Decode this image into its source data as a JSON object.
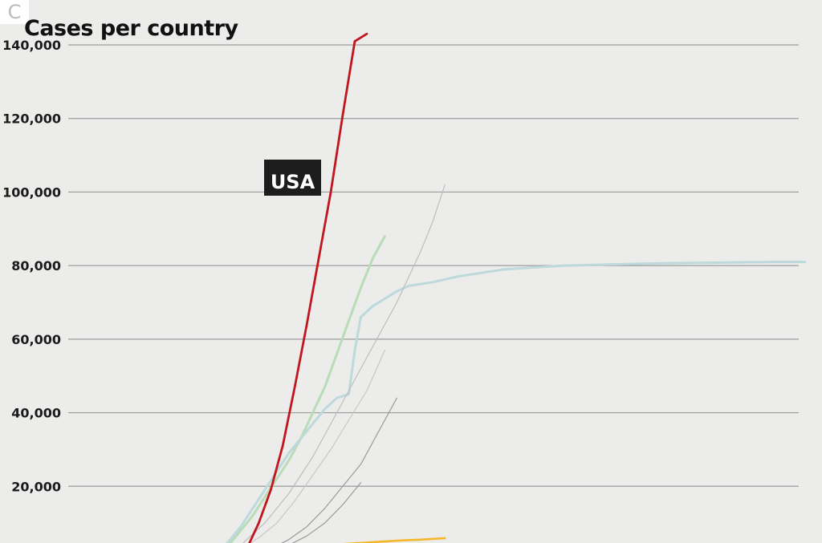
{
  "logo_text": "C",
  "chart_data": {
    "type": "line",
    "title": "Cases per country",
    "xlabel": "",
    "ylabel": "",
    "ylim": [
      0,
      140000
    ],
    "x_domain": [
      0,
      100
    ],
    "yticks": [
      {
        "value": 20000,
        "label": "20,000"
      },
      {
        "value": 40000,
        "label": "40,000"
      },
      {
        "value": 60000,
        "label": "60,000"
      },
      {
        "value": 80000,
        "label": "80,000"
      },
      {
        "value": 100000,
        "label": "100,000"
      },
      {
        "value": 120000,
        "label": "120,000"
      },
      {
        "value": 140000,
        "label": "140,000"
      }
    ],
    "grid": true,
    "series": [
      {
        "name": "USA",
        "color": "#c0161d",
        "x": [
          3,
          5,
          7,
          9,
          11,
          13,
          15,
          17,
          19,
          21,
          23,
          25,
          27
        ],
        "y": [
          0,
          1500,
          3000,
          10000,
          19000,
          31000,
          47000,
          64000,
          82000,
          100000,
          121000,
          141000,
          143000
        ]
      },
      {
        "color": "#b9dcb6",
        "x": [
          0,
          2,
          4,
          6,
          8,
          10,
          12,
          14,
          16,
          18,
          20,
          22,
          24,
          26,
          28,
          30
        ],
        "y": [
          0,
          1500,
          4000,
          8000,
          12000,
          17000,
          22000,
          27000,
          33000,
          40000,
          47000,
          56000,
          65000,
          74000,
          82000,
          88000
        ]
      },
      {
        "color": "#bcd9dc",
        "x": [
          0,
          2,
          4,
          6,
          8,
          10,
          12,
          14,
          16,
          18,
          20,
          22,
          24,
          25,
          26,
          28,
          30,
          32,
          34,
          38,
          42,
          46,
          50,
          55,
          60,
          65,
          70,
          75,
          80,
          85,
          90,
          95,
          100
        ],
        "y": [
          0,
          2000,
          5000,
          9000,
          14000,
          19000,
          24000,
          29000,
          33000,
          37000,
          41000,
          44000,
          45000,
          57000,
          66000,
          69000,
          71000,
          73000,
          74500,
          75500,
          77000,
          78000,
          79000,
          79500,
          80000,
          80200,
          80400,
          80600,
          80700,
          80800,
          80900,
          81000,
          81000
        ]
      },
      {
        "color": "#bdbdbd",
        "x": [
          2,
          4,
          6,
          8,
          10,
          12,
          14,
          16,
          18,
          20,
          22,
          24,
          26,
          28,
          30,
          32,
          34,
          36,
          38,
          40
        ],
        "y": [
          0,
          2000,
          4000,
          7000,
          10000,
          14000,
          18000,
          23000,
          28000,
          34000,
          40000,
          46000,
          52000,
          58000,
          64000,
          70000,
          77000,
          84000,
          92000,
          102000
        ]
      },
      {
        "color": "#c8c8c8",
        "x": [
          3,
          6,
          9,
          12,
          15,
          18,
          21,
          24,
          27,
          30
        ],
        "y": [
          0,
          3000,
          6000,
          10000,
          16000,
          23000,
          30000,
          38000,
          46000,
          57000
        ]
      },
      {
        "color": "#9a9a9a",
        "x": [
          5,
          8,
          11,
          14,
          17,
          20,
          23,
          26,
          29,
          32
        ],
        "y": [
          0,
          1500,
          3000,
          5500,
          9000,
          14000,
          20000,
          26000,
          35000,
          44000
        ]
      },
      {
        "color": "#9a9a9a",
        "x": [
          5,
          8,
          11,
          14,
          17,
          20,
          23,
          26
        ],
        "y": [
          0,
          1000,
          2000,
          4000,
          6500,
          10000,
          15000,
          21000
        ]
      },
      {
        "color": "#f5b72a",
        "x": [
          0,
          3,
          6,
          9,
          12,
          15,
          18,
          21,
          24,
          27,
          30,
          33,
          36,
          40
        ],
        "y": [
          0,
          800,
          1800,
          2800,
          3200,
          3500,
          3800,
          4100,
          4400,
          4700,
          5000,
          5300,
          5500,
          5900
        ]
      }
    ],
    "annotations": [
      {
        "text": "USA",
        "series": "USA"
      }
    ]
  }
}
